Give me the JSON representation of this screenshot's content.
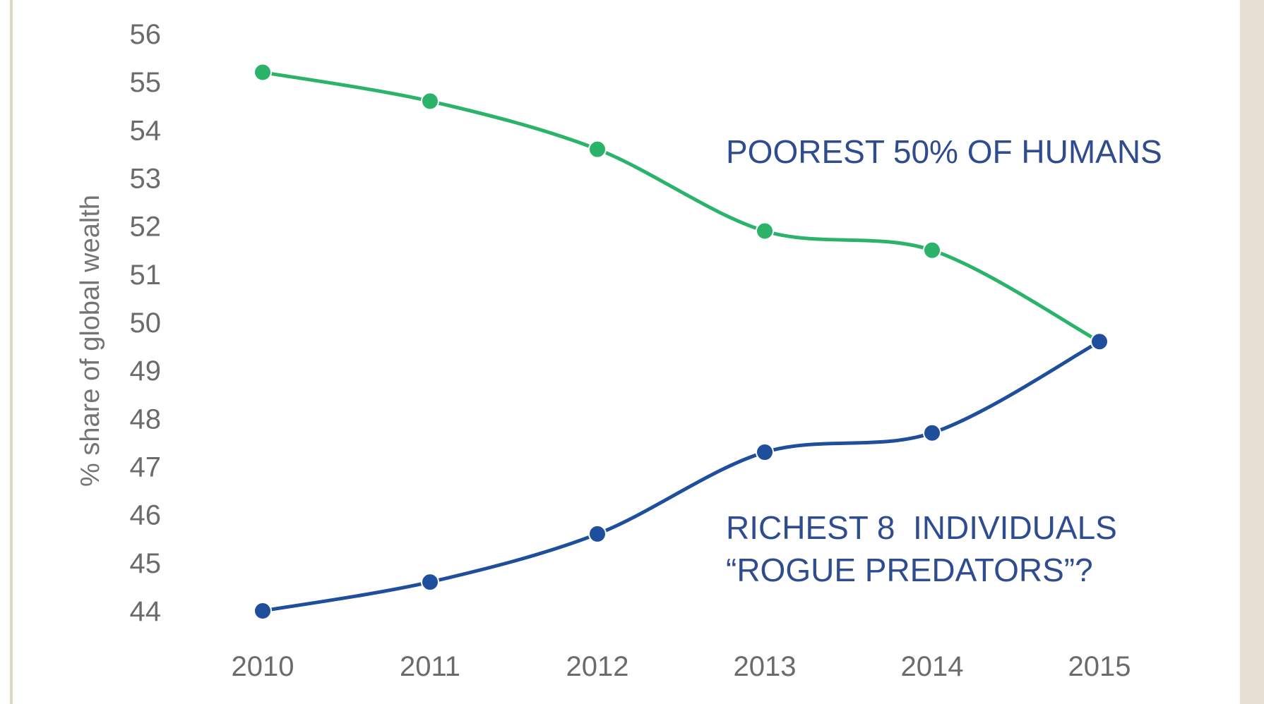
{
  "chart_data": {
    "type": "line",
    "ylabel": "% share of global wealth",
    "xlabel": "",
    "x": [
      "2010",
      "2011",
      "2012",
      "2013",
      "2014",
      "2015"
    ],
    "yticks": [
      "44",
      "45",
      "46",
      "47",
      "48",
      "49",
      "50",
      "51",
      "52",
      "53",
      "54",
      "55",
      "56"
    ],
    "ylim": [
      44,
      56
    ],
    "grid": false,
    "series": [
      {
        "name": "POOREST 50% OF HUMANS",
        "color": "#2bb36a",
        "values": [
          55.2,
          54.6,
          53.6,
          51.9,
          51.5,
          49.6
        ]
      },
      {
        "name": "RICHEST 8  INDIVIDUALS",
        "color": "#1f4f9c",
        "values": [
          44.0,
          44.6,
          45.6,
          47.3,
          47.7,
          49.6
        ]
      }
    ],
    "annotations": {
      "poorest": "POOREST 50% OF HUMANS",
      "richest_line1": "RICHEST 8  INDIVIDUALS",
      "richest_line2": "“ROGUE PREDATORS”?"
    },
    "annotation_color": "#2f4d8e"
  }
}
